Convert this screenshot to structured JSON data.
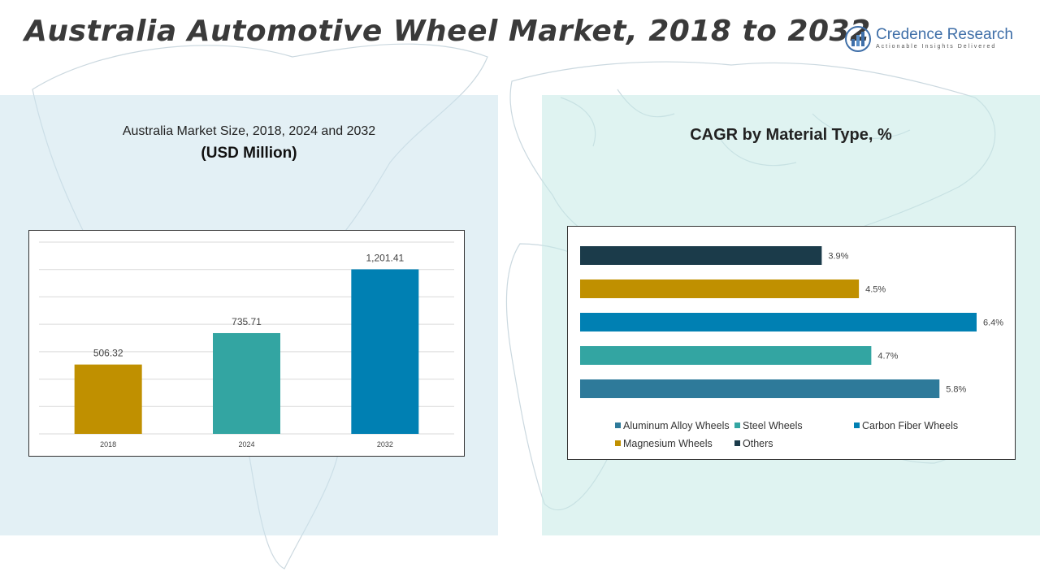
{
  "header": {
    "title": "Australia Automotive Wheel Market, 2018 to 2032",
    "logo_name": "Credence Research",
    "logo_tagline": "Actionable Insights Delivered"
  },
  "left_panel": {
    "title": "Australia Market Size, 2018, 2024 and 2032",
    "subtitle": "(USD Million)"
  },
  "right_panel": {
    "title": "CAGR by Material Type, %"
  },
  "colors": {
    "aluminum": "#2e7a9a",
    "steel": "#33a5a2",
    "carbon": "#0080b3",
    "magnesium": "#c09000",
    "others": "#1b3b4a",
    "logo_blue": "#3f6fa8"
  },
  "chart_data": [
    {
      "type": "bar",
      "categories": [
        "2018",
        "2024",
        "2032"
      ],
      "values": [
        506.32,
        735.71,
        1201.41
      ],
      "value_labels": [
        "506.32",
        "735.71",
        "1,201.41"
      ],
      "bar_colors": [
        "#c09000",
        "#33a5a2",
        "#0080b3"
      ],
      "title": "Australia Market Size, 2018, 2024 and 2032",
      "ylabel": "(USD Million)",
      "ylim": [
        0,
        1400
      ],
      "grid": true
    },
    {
      "type": "bar",
      "orientation": "horizontal",
      "title": "CAGR by Material Type, %",
      "series": [
        {
          "name": "Others",
          "value": 3.9,
          "label": "3.9%",
          "color": "#1b3b4a"
        },
        {
          "name": "Magnesium Wheels",
          "value": 4.5,
          "label": "4.5%",
          "color": "#c09000"
        },
        {
          "name": "Carbon Fiber Wheels",
          "value": 6.4,
          "label": "6.4%",
          "color": "#0080b3"
        },
        {
          "name": "Steel Wheels",
          "value": 4.7,
          "label": "4.7%",
          "color": "#33a5a2"
        },
        {
          "name": "Aluminum Alloy Wheels",
          "value": 5.8,
          "label": "5.8%",
          "color": "#2e7a9a"
        }
      ],
      "legend": [
        "Aluminum Alloy Wheels",
        "Steel Wheels",
        "Carbon Fiber Wheels",
        "Magnesium Wheels",
        "Others"
      ],
      "legend_position": "bottom",
      "xlim": [
        0,
        6.4
      ],
      "grid": false
    }
  ]
}
